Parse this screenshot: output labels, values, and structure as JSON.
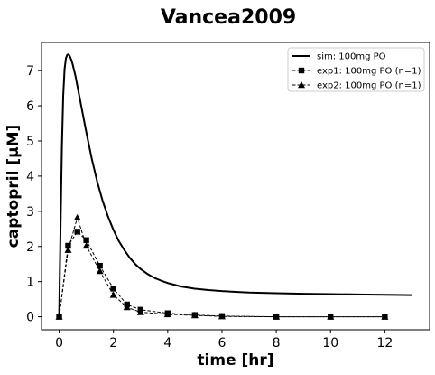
{
  "chart_data": {
    "type": "line",
    "title": "Vancea2009",
    "xlabel": "time [hr]",
    "ylabel": "captopril [µM]",
    "xlim": [
      -0.65,
      13.65
    ],
    "ylim": [
      -0.37,
      7.8
    ],
    "xticks": [
      0,
      2,
      4,
      6,
      8,
      10,
      12
    ],
    "yticks": [
      0,
      1,
      2,
      3,
      4,
      5,
      6,
      7
    ],
    "grid": false,
    "legend_position": "top-right",
    "colors": {
      "line": "#000000",
      "background": "#ffffff"
    },
    "series": [
      {
        "name": "sim: 100mg PO",
        "style": "solid",
        "marker": "none",
        "x": [
          0,
          0.05,
          0.1,
          0.15,
          0.2,
          0.25,
          0.3,
          0.35,
          0.4,
          0.45,
          0.5,
          0.6,
          0.7,
          0.8,
          0.9,
          1.0,
          1.2,
          1.4,
          1.6,
          1.8,
          2.0,
          2.2,
          2.4,
          2.6,
          2.8,
          3.0,
          3.25,
          3.5,
          3.75,
          4.0,
          4.5,
          5.0,
          5.5,
          6.0,
          6.5,
          7.0,
          8.0,
          9.0,
          10.0,
          11.0,
          12.0,
          13.0
        ],
        "y": [
          0,
          2.5,
          4.8,
          6.3,
          7.05,
          7.35,
          7.45,
          7.46,
          7.4,
          7.3,
          7.17,
          6.85,
          6.45,
          6.05,
          5.65,
          5.25,
          4.5,
          3.85,
          3.3,
          2.85,
          2.47,
          2.15,
          1.9,
          1.68,
          1.5,
          1.36,
          1.22,
          1.11,
          1.03,
          0.96,
          0.86,
          0.8,
          0.76,
          0.73,
          0.71,
          0.69,
          0.67,
          0.655,
          0.645,
          0.635,
          0.625,
          0.615
        ]
      },
      {
        "name": "exp1: 100mg PO (n=1)",
        "style": "dashed",
        "marker": "square",
        "x": [
          0,
          0.33,
          0.67,
          1.0,
          1.5,
          2.0,
          2.5,
          3.0,
          4.0,
          5.0,
          6.0,
          8.0,
          10.0,
          12.0
        ],
        "y": [
          0.0,
          2.02,
          2.42,
          2.18,
          1.45,
          0.8,
          0.35,
          0.2,
          0.1,
          0.05,
          0.02,
          0.0,
          0.0,
          0.0
        ]
      },
      {
        "name": "exp2: 100mg PO (n=1)",
        "style": "dashed",
        "marker": "triangle",
        "x": [
          0,
          0.33,
          0.67,
          1.0,
          1.5,
          2.0,
          2.5,
          3.0,
          4.0,
          5.0,
          6.0,
          8.0,
          10.0,
          12.0
        ],
        "y": [
          0.0,
          1.9,
          2.82,
          2.02,
          1.3,
          0.62,
          0.27,
          0.13,
          0.07,
          0.04,
          0.01,
          0.0,
          0.0,
          0.0
        ]
      }
    ]
  }
}
